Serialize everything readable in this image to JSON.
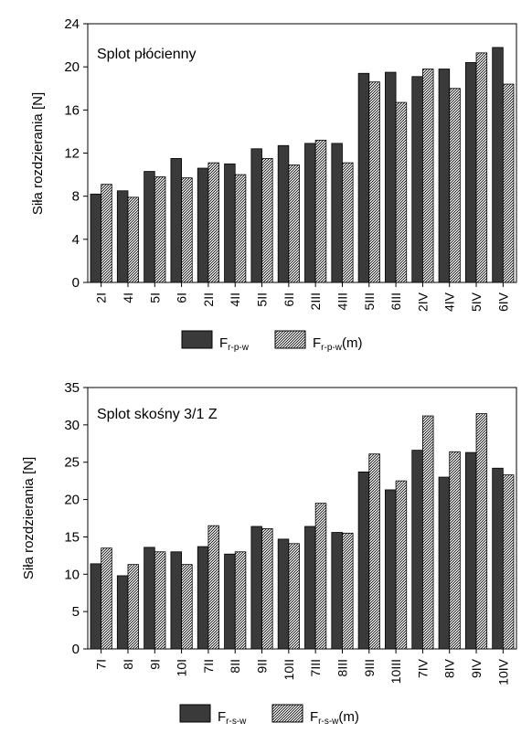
{
  "chart_data": [
    {
      "type": "bar",
      "title": "Splot płócienny",
      "ylabel": "Siła rozdzierania [N]",
      "xlabel": "",
      "ylim": [
        0,
        24
      ],
      "yticks": [
        0,
        4,
        8,
        12,
        16,
        20,
        24
      ],
      "categories": [
        "2I",
        "4I",
        "5I",
        "6I",
        "2II",
        "4II",
        "5II",
        "6II",
        "2III",
        "4III",
        "5III",
        "6III",
        "2IV",
        "4IV",
        "5IV",
        "6IV"
      ],
      "series": [
        {
          "name": "F",
          "subscript": "r-p-w",
          "suffix": "",
          "fill": "dark",
          "values": [
            8.2,
            8.5,
            10.3,
            11.5,
            10.6,
            11.0,
            12.4,
            12.7,
            12.9,
            12.9,
            19.4,
            19.5,
            19.1,
            19.8,
            20.4,
            21.8
          ]
        },
        {
          "name": "F",
          "subscript": "r-p-w",
          "suffix": "(m)",
          "fill": "hatched",
          "values": [
            9.1,
            7.9,
            9.8,
            9.7,
            11.1,
            10.0,
            11.5,
            10.9,
            13.2,
            11.1,
            18.6,
            16.7,
            19.8,
            18.0,
            21.3,
            18.4
          ]
        }
      ]
    },
    {
      "type": "bar",
      "title": "Splot skośny 3/1 Z",
      "ylabel": "Siła rozdzierania [N]",
      "xlabel": "",
      "ylim": [
        0,
        35
      ],
      "yticks": [
        0,
        5,
        10,
        15,
        20,
        25,
        30,
        35
      ],
      "categories": [
        "7I",
        "8I",
        "9I",
        "10I",
        "7II",
        "8II",
        "9II",
        "10II",
        "7III",
        "8III",
        "9III",
        "10III",
        "7IV",
        "8IV",
        "9IV",
        "10IV"
      ],
      "series": [
        {
          "name": "F",
          "subscript": "r-s-w",
          "suffix": "",
          "fill": "dark",
          "values": [
            11.4,
            9.8,
            13.6,
            13.0,
            13.7,
            12.7,
            16.4,
            14.7,
            16.4,
            15.6,
            23.7,
            21.3,
            26.6,
            23.0,
            26.3,
            24.2
          ]
        },
        {
          "name": "F",
          "subscript": "r-s-w",
          "suffix": "(m)",
          "fill": "hatched",
          "values": [
            13.5,
            11.3,
            13.0,
            11.3,
            16.5,
            13.0,
            16.1,
            14.1,
            19.5,
            15.5,
            26.1,
            22.5,
            31.2,
            26.4,
            31.5,
            23.3
          ]
        }
      ]
    }
  ]
}
